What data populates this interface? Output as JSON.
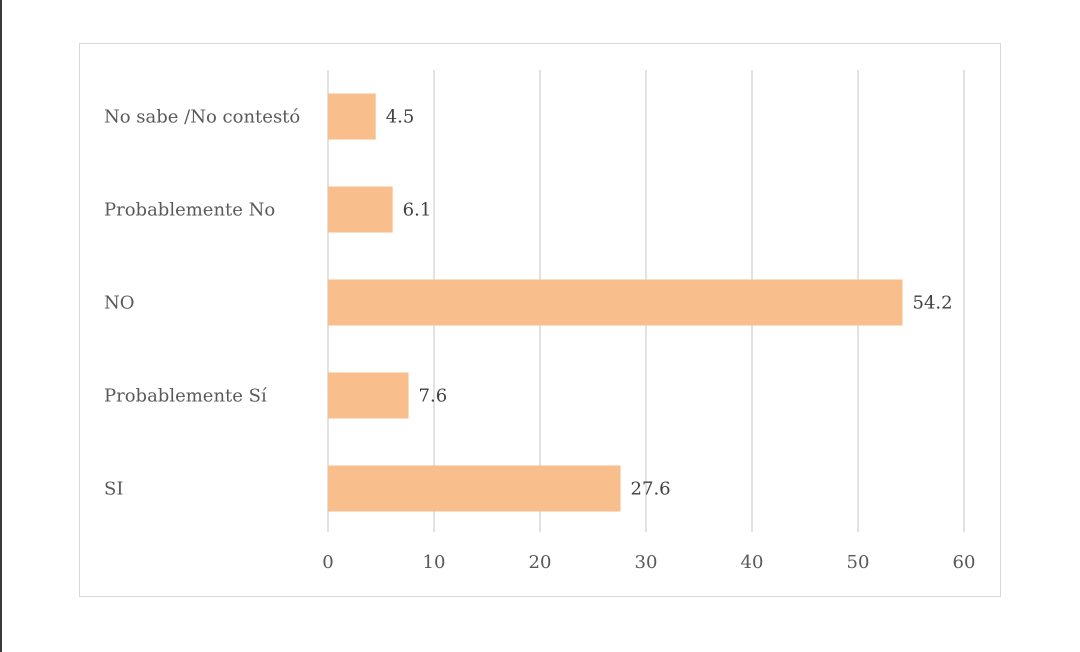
{
  "chart_data": {
    "type": "bar",
    "orientation": "horizontal",
    "categories": [
      "No sabe /No contestó",
      "Probablemente No",
      "NO",
      "Probablemente Sí",
      "SI"
    ],
    "values": [
      4.5,
      6.1,
      54.2,
      7.6,
      27.6
    ],
    "data_labels": [
      "4.5",
      "6.1",
      "54.2",
      "7.6",
      "27.6"
    ],
    "xlim": [
      0,
      60
    ],
    "x_ticks": [
      0,
      10,
      20,
      30,
      40,
      50,
      60
    ],
    "x_tick_labels": [
      "0",
      "10",
      "20",
      "30",
      "40",
      "50",
      "60"
    ],
    "grid": "vertical",
    "legend": "none",
    "bar_color": "#f8be8c",
    "grid_color": "#d9d9d9"
  }
}
